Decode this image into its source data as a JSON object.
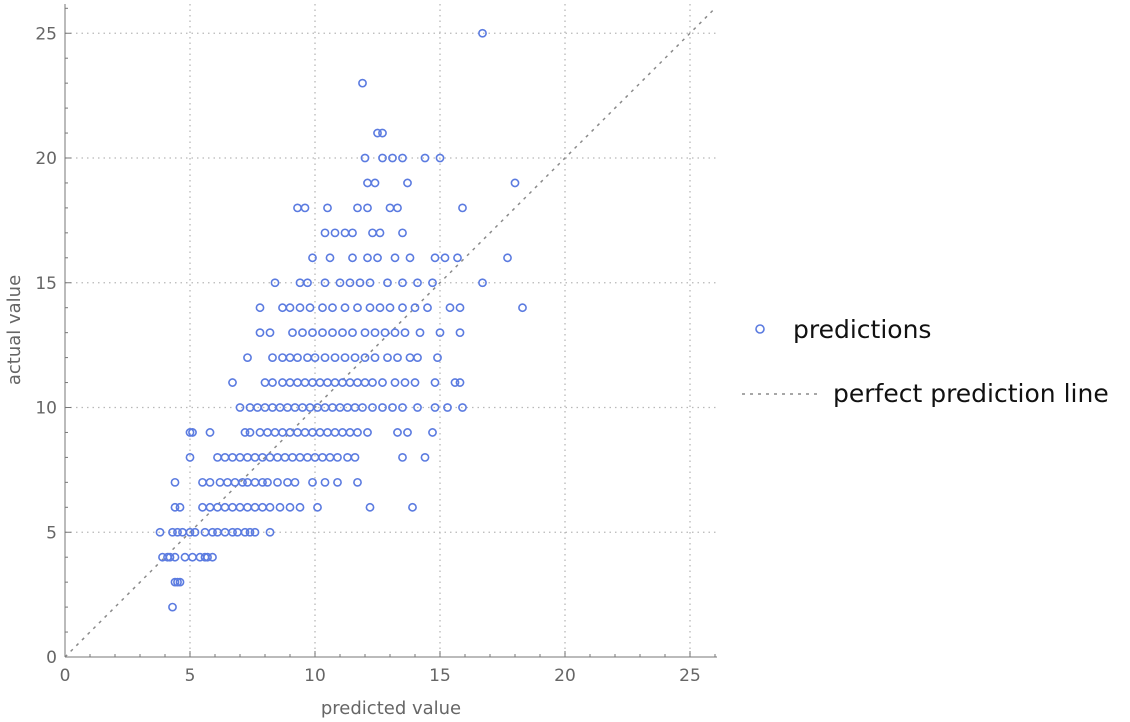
{
  "chart_data": {
    "type": "scatter",
    "title": "",
    "xlabel": "predicted value",
    "ylabel": "actual value",
    "xlim": [
      0,
      26
    ],
    "ylim": [
      0,
      26
    ],
    "xticks": [
      "0",
      "5",
      "10",
      "15",
      "20",
      "25"
    ],
    "yticks": [
      "0",
      "5",
      "10",
      "15",
      "20",
      "25"
    ],
    "grid": true,
    "legend_position": "right",
    "colors": {
      "points": "#5b7be0",
      "reference_line": "#8a8a8a",
      "grid": "#b8b8b8",
      "axis": "#777777"
    },
    "series": [
      {
        "name": "predictions",
        "marker": "open-circle",
        "points": [
          [
            4.3,
            2
          ],
          [
            4.4,
            3
          ],
          [
            4.5,
            3
          ],
          [
            4.6,
            3
          ],
          [
            3.9,
            4
          ],
          [
            4.1,
            4
          ],
          [
            4.2,
            4
          ],
          [
            4.4,
            4
          ],
          [
            4.8,
            4
          ],
          [
            5.1,
            4
          ],
          [
            5.4,
            4
          ],
          [
            5.6,
            4
          ],
          [
            5.7,
            4
          ],
          [
            5.9,
            4
          ],
          [
            3.8,
            5
          ],
          [
            4.3,
            5
          ],
          [
            4.5,
            5
          ],
          [
            4.7,
            5
          ],
          [
            5.0,
            5
          ],
          [
            5.2,
            5
          ],
          [
            5.6,
            5
          ],
          [
            5.9,
            5
          ],
          [
            6.1,
            5
          ],
          [
            6.4,
            5
          ],
          [
            6.7,
            5
          ],
          [
            6.9,
            5
          ],
          [
            7.2,
            5
          ],
          [
            7.4,
            5
          ],
          [
            7.6,
            5
          ],
          [
            8.2,
            5
          ],
          [
            4.4,
            6
          ],
          [
            4.6,
            6
          ],
          [
            5.5,
            6
          ],
          [
            5.8,
            6
          ],
          [
            6.1,
            6
          ],
          [
            6.4,
            6
          ],
          [
            6.7,
            6
          ],
          [
            7.0,
            6
          ],
          [
            7.3,
            6
          ],
          [
            7.6,
            6
          ],
          [
            7.9,
            6
          ],
          [
            8.2,
            6
          ],
          [
            8.6,
            6
          ],
          [
            9.0,
            6
          ],
          [
            9.4,
            6
          ],
          [
            10.1,
            6
          ],
          [
            12.2,
            6
          ],
          [
            13.9,
            6
          ],
          [
            4.4,
            7
          ],
          [
            5.5,
            7
          ],
          [
            5.8,
            7
          ],
          [
            6.2,
            7
          ],
          [
            6.5,
            7
          ],
          [
            6.8,
            7
          ],
          [
            7.1,
            7
          ],
          [
            7.3,
            7
          ],
          [
            7.6,
            7
          ],
          [
            7.9,
            7
          ],
          [
            8.1,
            7
          ],
          [
            8.5,
            7
          ],
          [
            8.9,
            7
          ],
          [
            9.2,
            7
          ],
          [
            9.9,
            7
          ],
          [
            10.4,
            7
          ],
          [
            10.9,
            7
          ],
          [
            11.7,
            7
          ],
          [
            5.0,
            8
          ],
          [
            6.1,
            8
          ],
          [
            6.4,
            8
          ],
          [
            6.7,
            8
          ],
          [
            7.0,
            8
          ],
          [
            7.3,
            8
          ],
          [
            7.6,
            8
          ],
          [
            7.9,
            8
          ],
          [
            8.2,
            8
          ],
          [
            8.5,
            8
          ],
          [
            8.8,
            8
          ],
          [
            9.1,
            8
          ],
          [
            9.4,
            8
          ],
          [
            9.7,
            8
          ],
          [
            10.0,
            8
          ],
          [
            10.3,
            8
          ],
          [
            10.6,
            8
          ],
          [
            10.9,
            8
          ],
          [
            11.3,
            8
          ],
          [
            11.6,
            8
          ],
          [
            13.5,
            8
          ],
          [
            14.4,
            8
          ],
          [
            5.0,
            9
          ],
          [
            5.1,
            9
          ],
          [
            5.8,
            9
          ],
          [
            7.2,
            9
          ],
          [
            7.4,
            9
          ],
          [
            7.8,
            9
          ],
          [
            8.1,
            9
          ],
          [
            8.4,
            9
          ],
          [
            8.7,
            9
          ],
          [
            9.0,
            9
          ],
          [
            9.3,
            9
          ],
          [
            9.6,
            9
          ],
          [
            9.9,
            9
          ],
          [
            10.2,
            9
          ],
          [
            10.5,
            9
          ],
          [
            10.8,
            9
          ],
          [
            11.1,
            9
          ],
          [
            11.4,
            9
          ],
          [
            11.7,
            9
          ],
          [
            12.1,
            9
          ],
          [
            13.3,
            9
          ],
          [
            13.7,
            9
          ],
          [
            14.7,
            9
          ],
          [
            7.0,
            10
          ],
          [
            7.4,
            10
          ],
          [
            7.7,
            10
          ],
          [
            8.0,
            10
          ],
          [
            8.3,
            10
          ],
          [
            8.6,
            10
          ],
          [
            8.9,
            10
          ],
          [
            9.2,
            10
          ],
          [
            9.5,
            10
          ],
          [
            9.8,
            10
          ],
          [
            10.1,
            10
          ],
          [
            10.4,
            10
          ],
          [
            10.7,
            10
          ],
          [
            11.0,
            10
          ],
          [
            11.3,
            10
          ],
          [
            11.6,
            10
          ],
          [
            11.9,
            10
          ],
          [
            12.3,
            10
          ],
          [
            12.7,
            10
          ],
          [
            13.1,
            10
          ],
          [
            13.5,
            10
          ],
          [
            14.1,
            10
          ],
          [
            14.8,
            10
          ],
          [
            15.3,
            10
          ],
          [
            15.9,
            10
          ],
          [
            6.7,
            11
          ],
          [
            8.0,
            11
          ],
          [
            8.3,
            11
          ],
          [
            8.7,
            11
          ],
          [
            9.0,
            11
          ],
          [
            9.3,
            11
          ],
          [
            9.6,
            11
          ],
          [
            9.9,
            11
          ],
          [
            10.2,
            11
          ],
          [
            10.5,
            11
          ],
          [
            10.8,
            11
          ],
          [
            11.1,
            11
          ],
          [
            11.4,
            11
          ],
          [
            11.7,
            11
          ],
          [
            12.0,
            11
          ],
          [
            12.3,
            11
          ],
          [
            12.7,
            11
          ],
          [
            13.2,
            11
          ],
          [
            13.6,
            11
          ],
          [
            14.0,
            11
          ],
          [
            14.8,
            11
          ],
          [
            15.6,
            11
          ],
          [
            15.8,
            11
          ],
          [
            7.3,
            12
          ],
          [
            8.3,
            12
          ],
          [
            8.7,
            12
          ],
          [
            9.0,
            12
          ],
          [
            9.3,
            12
          ],
          [
            9.7,
            12
          ],
          [
            10.0,
            12
          ],
          [
            10.4,
            12
          ],
          [
            10.8,
            12
          ],
          [
            11.2,
            12
          ],
          [
            11.6,
            12
          ],
          [
            12.0,
            12
          ],
          [
            12.4,
            12
          ],
          [
            12.9,
            12
          ],
          [
            13.3,
            12
          ],
          [
            13.8,
            12
          ],
          [
            14.1,
            12
          ],
          [
            14.9,
            12
          ],
          [
            7.8,
            13
          ],
          [
            8.2,
            13
          ],
          [
            9.1,
            13
          ],
          [
            9.5,
            13
          ],
          [
            9.9,
            13
          ],
          [
            10.3,
            13
          ],
          [
            10.7,
            13
          ],
          [
            11.1,
            13
          ],
          [
            11.5,
            13
          ],
          [
            12.0,
            13
          ],
          [
            12.4,
            13
          ],
          [
            12.8,
            13
          ],
          [
            13.2,
            13
          ],
          [
            13.6,
            13
          ],
          [
            14.2,
            13
          ],
          [
            15.0,
            13
          ],
          [
            15.8,
            13
          ],
          [
            7.8,
            14
          ],
          [
            8.7,
            14
          ],
          [
            9.0,
            14
          ],
          [
            9.4,
            14
          ],
          [
            9.8,
            14
          ],
          [
            10.3,
            14
          ],
          [
            10.7,
            14
          ],
          [
            11.2,
            14
          ],
          [
            11.7,
            14
          ],
          [
            12.2,
            14
          ],
          [
            12.6,
            14
          ],
          [
            13.0,
            14
          ],
          [
            13.5,
            14
          ],
          [
            14.0,
            14
          ],
          [
            14.5,
            14
          ],
          [
            15.4,
            14
          ],
          [
            15.8,
            14
          ],
          [
            18.3,
            14
          ],
          [
            8.4,
            15
          ],
          [
            9.4,
            15
          ],
          [
            9.7,
            15
          ],
          [
            10.4,
            15
          ],
          [
            11.0,
            15
          ],
          [
            11.4,
            15
          ],
          [
            11.8,
            15
          ],
          [
            12.2,
            15
          ],
          [
            12.9,
            15
          ],
          [
            13.5,
            15
          ],
          [
            14.1,
            15
          ],
          [
            14.7,
            15
          ],
          [
            16.7,
            15
          ],
          [
            9.9,
            16
          ],
          [
            10.6,
            16
          ],
          [
            11.5,
            16
          ],
          [
            12.1,
            16
          ],
          [
            12.5,
            16
          ],
          [
            13.2,
            16
          ],
          [
            13.8,
            16
          ],
          [
            14.8,
            16
          ],
          [
            15.2,
            16
          ],
          [
            15.7,
            16
          ],
          [
            17.7,
            16
          ],
          [
            10.4,
            17
          ],
          [
            10.8,
            17
          ],
          [
            11.2,
            17
          ],
          [
            11.5,
            17
          ],
          [
            12.3,
            17
          ],
          [
            12.6,
            17
          ],
          [
            13.5,
            17
          ],
          [
            9.3,
            18
          ],
          [
            9.6,
            18
          ],
          [
            10.5,
            18
          ],
          [
            11.7,
            18
          ],
          [
            12.1,
            18
          ],
          [
            13.0,
            18
          ],
          [
            13.3,
            18
          ],
          [
            15.9,
            18
          ],
          [
            12.1,
            19
          ],
          [
            12.4,
            19
          ],
          [
            13.7,
            19
          ],
          [
            18.0,
            19
          ],
          [
            12.0,
            20
          ],
          [
            12.7,
            20
          ],
          [
            13.1,
            20
          ],
          [
            13.5,
            20
          ],
          [
            14.4,
            20
          ],
          [
            15.0,
            20
          ],
          [
            12.5,
            21
          ],
          [
            12.7,
            21
          ],
          [
            11.9,
            23
          ],
          [
            16.7,
            25
          ]
        ]
      },
      {
        "name": "perfect prediction line",
        "marker": "dashed-line",
        "points": [
          [
            0,
            0
          ],
          [
            26,
            26
          ]
        ]
      }
    ]
  }
}
